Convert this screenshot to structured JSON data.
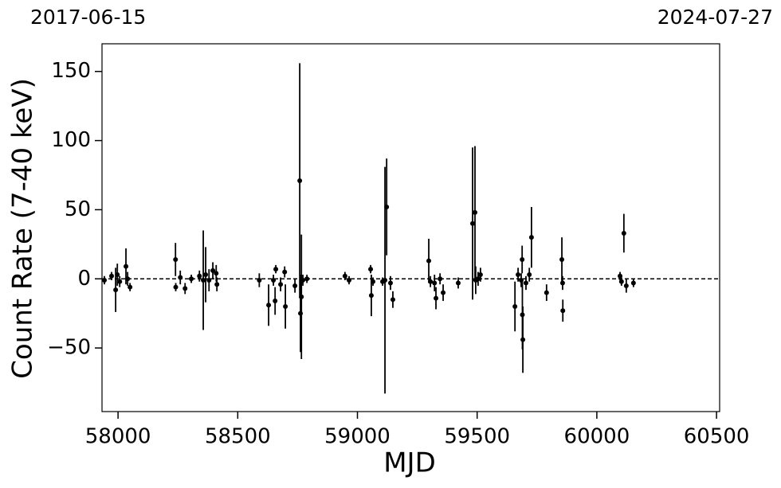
{
  "chart_data": {
    "type": "scatter",
    "annotations": [
      "2017-06-15",
      "2024-07-27"
    ],
    "x_label": "MJD",
    "y_label": "Count Rate (7-40 keV)",
    "color": "#000000",
    "reference_line": 0,
    "xlim": [
      57933,
      60513
    ],
    "ylim": [
      -96,
      170
    ],
    "xticks": [
      58000,
      58500,
      59000,
      59500,
      60000,
      60500
    ],
    "yticks": [
      {
        "value": -50,
        "label": "−50"
      },
      0,
      50,
      100,
      150
    ],
    "x": [
      57943,
      57973,
      57990,
      57997,
      58007,
      58033,
      58040,
      58050,
      58240,
      58241,
      58260,
      58280,
      58306,
      58340,
      58356,
      58366,
      58380,
      58396,
      58410,
      58413,
      58590,
      58629,
      58649,
      58656,
      58659,
      58679,
      58696,
      58699,
      58739,
      58759,
      58762,
      58766,
      58772,
      58789,
      58948,
      58965,
      59055,
      59058,
      59065,
      59105,
      59115,
      59122,
      59138,
      59148,
      59298,
      59305,
      59322,
      59328,
      59345,
      59358,
      59421,
      59481,
      59491,
      59494,
      59504,
      59514,
      59658,
      59671,
      59684,
      59688,
      59689,
      59691,
      59704,
      59718,
      59727,
      59790,
      59854,
      59857,
      59858,
      60097,
      60103,
      60113,
      60123,
      60153
    ],
    "values": [
      -1,
      2,
      -8,
      3,
      -2,
      9,
      0,
      -6,
      14,
      -6,
      1,
      -7,
      0,
      2,
      -1,
      3,
      -1,
      6,
      4,
      -4,
      -1,
      -19,
      -1,
      -16,
      7,
      -4,
      5,
      -20,
      -5,
      71,
      -25,
      -13,
      -1,
      0,
      2,
      -1,
      7,
      -12,
      -2,
      -2,
      -1,
      52,
      -3,
      -15,
      13,
      -2,
      -3,
      -14,
      0,
      -10,
      -3,
      40,
      48,
      -1,
      0,
      3,
      -20,
      3,
      -1,
      14,
      -26,
      -44,
      -3,
      3,
      30,
      -10,
      14,
      -3,
      -23,
      2,
      -2,
      33,
      -5,
      -3
    ],
    "errors": [
      3,
      3,
      16,
      8,
      4,
      13,
      5,
      3,
      12,
      3,
      5,
      4,
      3,
      4,
      36,
      20,
      8,
      6,
      6,
      5,
      5,
      15,
      4,
      10,
      3,
      5,
      4,
      16,
      5,
      85,
      28,
      45,
      4,
      3,
      3,
      3,
      3,
      15,
      3,
      3,
      82,
      35,
      5,
      6,
      16,
      4,
      6,
      8,
      4,
      6,
      4,
      55,
      48,
      10,
      5,
      5,
      18,
      5,
      5,
      10,
      25,
      24,
      5,
      5,
      22,
      6,
      16,
      5,
      8,
      3,
      3,
      14,
      5,
      3
    ]
  }
}
